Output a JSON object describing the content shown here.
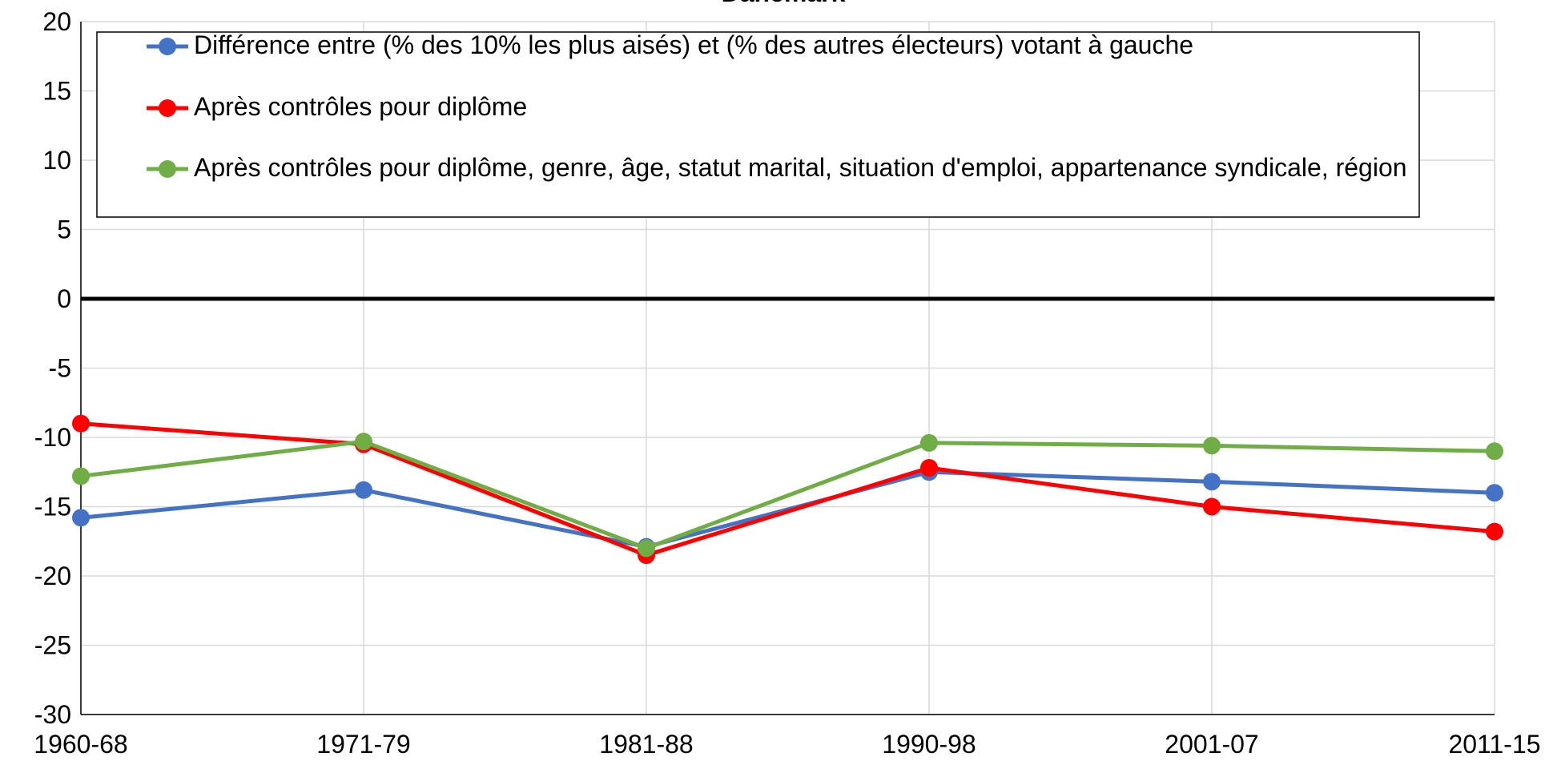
{
  "chart_data": {
    "type": "line",
    "title": "Danemark",
    "categories": [
      "1960-68",
      "1971-79",
      "1981-88",
      "1990-98",
      "2001-07",
      "2011-15"
    ],
    "series": [
      {
        "name": "Différence entre (% des 10% les plus aisés) et (% des autres électeurs) votant à gauche",
        "color": "#4472c4",
        "values": [
          -15.8,
          -13.8,
          -17.9,
          -12.5,
          -13.2,
          -14.0
        ]
      },
      {
        "name": "Après contrôles pour diplôme",
        "color": "#ff0000",
        "values": [
          -9.0,
          -10.5,
          -18.5,
          -12.2,
          -15.0,
          -16.8
        ]
      },
      {
        "name": "Après contrôles pour diplôme, genre, âge, statut marital, situation d'emploi, appartenance syndicale, région",
        "color": "#70ad47",
        "values": [
          -12.8,
          -10.3,
          -18.0,
          -10.4,
          -10.6,
          -11.0
        ]
      }
    ],
    "ylim": [
      -30,
      20
    ],
    "yticks": [
      -30,
      -25,
      -20,
      -15,
      -10,
      -5,
      0,
      5,
      10,
      15,
      20
    ],
    "grid": true
  }
}
